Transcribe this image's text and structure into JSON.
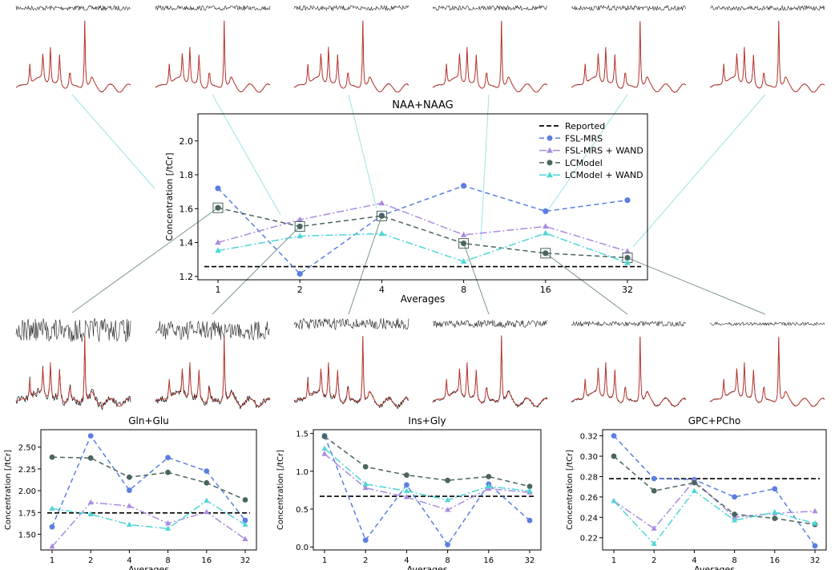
{
  "colors": {
    "reported": "#000000",
    "fsl": "#5b7fe0",
    "fsl_wand": "#a98be0",
    "lcmodel": "#4a6560",
    "lcmodel_wand": "#4fd6d6",
    "spectrum_fit": "#c0302a",
    "spectrum_data": "#111111",
    "connector_top": "#9fe3e3",
    "connector_bottom": "#7a9590"
  },
  "legend": {
    "reported": "Reported",
    "fsl": "FSL-MRS",
    "fsl_wand": "FSL-MRS + WAND",
    "lcmodel": "LCModel",
    "lcmodel_wand": "LCModel + WAND"
  },
  "chart_data": [
    {
      "type": "line",
      "title": "NAA+NAAG",
      "xlabel": "Averages",
      "ylabel": "Concentration [/tCr]",
      "categories": [
        "1",
        "2",
        "4",
        "8",
        "16",
        "32"
      ],
      "ylim": [
        1.18,
        2.16
      ],
      "yticks": [
        "1.2",
        "1.4",
        "1.6",
        "1.8",
        "2.0"
      ],
      "legend_position": "top-right",
      "reported": 1.258,
      "series": [
        {
          "name": "FSL-MRS",
          "values": [
            1.72,
            1.215,
            1.56,
            1.735,
            1.585,
            1.65
          ]
        },
        {
          "name": "FSL-MRS + WAND",
          "values": [
            1.4,
            1.535,
            1.632,
            1.445,
            1.495,
            1.348
          ]
        },
        {
          "name": "LCModel",
          "values": [
            1.605,
            1.495,
            1.557,
            1.395,
            1.337,
            1.31
          ]
        },
        {
          "name": "LCModel + WAND",
          "values": [
            1.352,
            1.438,
            1.452,
            1.288,
            1.455,
            1.28
          ]
        }
      ]
    },
    {
      "type": "line",
      "title": "Gln+Glu",
      "xlabel": "Averages",
      "ylabel": "Concentration [/tCr]",
      "categories": [
        "1",
        "2",
        "4",
        "8",
        "16",
        "32"
      ],
      "ylim": [
        1.32,
        2.7
      ],
      "yticks": [
        "1.50",
        "1.75",
        "2.00",
        "2.25",
        "2.50"
      ],
      "reported": 1.745,
      "series": [
        {
          "name": "FSL-MRS",
          "values": [
            1.585,
            2.63,
            2.005,
            2.38,
            2.225,
            1.66
          ]
        },
        {
          "name": "FSL-MRS + WAND",
          "values": [
            1.36,
            1.865,
            1.825,
            1.625,
            1.755,
            1.445
          ]
        },
        {
          "name": "LCModel",
          "values": [
            2.385,
            2.375,
            2.155,
            2.21,
            2.09,
            1.895
          ]
        },
        {
          "name": "LCModel + WAND",
          "values": [
            1.795,
            1.73,
            1.61,
            1.565,
            1.885,
            1.61
          ]
        }
      ]
    },
    {
      "type": "line",
      "title": "Ins+Gly",
      "xlabel": "Averages",
      "ylabel": "Concentration [/tCr]",
      "categories": [
        "1",
        "2",
        "4",
        "8",
        "16",
        "32"
      ],
      "ylim": [
        -0.04,
        1.55
      ],
      "yticks": [
        "0.0",
        "0.5",
        "1.0",
        "1.5"
      ],
      "reported": 0.67,
      "series": [
        {
          "name": "FSL-MRS",
          "values": [
            1.47,
            0.09,
            0.82,
            0.03,
            0.83,
            0.35
          ]
        },
        {
          "name": "FSL-MRS + WAND",
          "values": [
            1.23,
            0.78,
            0.66,
            0.49,
            0.77,
            0.72
          ]
        },
        {
          "name": "LCModel",
          "values": [
            1.46,
            1.06,
            0.95,
            0.88,
            0.93,
            0.8
          ]
        },
        {
          "name": "LCModel + WAND",
          "values": [
            1.3,
            0.83,
            0.74,
            0.62,
            0.8,
            0.74
          ]
        }
      ]
    },
    {
      "type": "line",
      "title": "GPC+PCho",
      "xlabel": "Averages",
      "ylabel": "Concentration [/tCr]",
      "categories": [
        "1",
        "2",
        "4",
        "8",
        "16",
        "32"
      ],
      "ylim": [
        0.208,
        0.326
      ],
      "yticks": [
        "0.22",
        "0.24",
        "0.26",
        "0.28",
        "0.30",
        "0.32"
      ],
      "reported": 0.278,
      "series": [
        {
          "name": "FSL-MRS",
          "values": [
            0.32,
            0.278,
            0.277,
            0.26,
            0.268,
            0.212
          ]
        },
        {
          "name": "FSL-MRS + WAND",
          "values": [
            0.256,
            0.229,
            0.276,
            0.24,
            0.244,
            0.246
          ]
        },
        {
          "name": "LCModel",
          "values": [
            0.3,
            0.266,
            0.274,
            0.243,
            0.239,
            0.233
          ]
        },
        {
          "name": "LCModel + WAND",
          "values": [
            0.256,
            0.214,
            0.266,
            0.237,
            0.245,
            0.234
          ]
        }
      ]
    }
  ]
}
